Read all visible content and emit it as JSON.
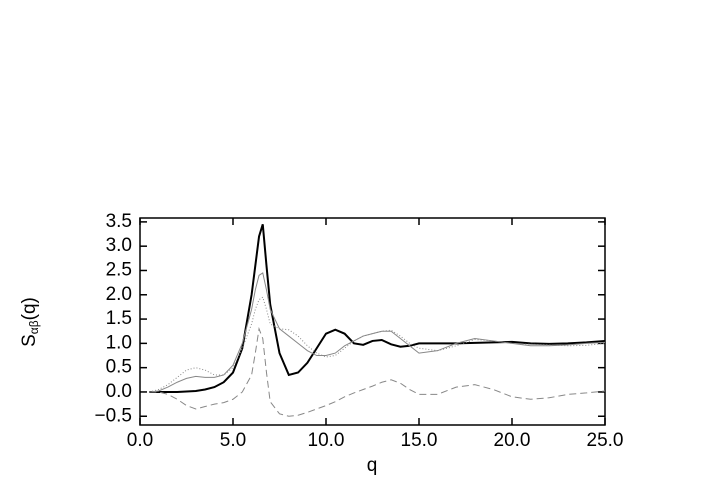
{
  "chart_data": {
    "type": "line",
    "x_label": "q",
    "y_label": "S",
    "y_label_subscript": "αβ",
    "y_label_suffix": "(q)",
    "x": [
      0.5,
      1,
      1.5,
      2,
      2.5,
      3,
      3.5,
      4,
      4.5,
      5,
      5.5,
      6,
      6.2,
      6.4,
      6.6,
      6.8,
      7,
      7.5,
      8,
      8.5,
      9,
      9.5,
      10,
      10.5,
      11,
      11.5,
      12,
      12.5,
      13,
      13.5,
      14,
      14.5,
      15,
      16,
      17,
      18,
      19,
      20,
      21,
      22,
      23,
      24,
      25
    ],
    "series": [
      {
        "color": "#000000",
        "width": 2,
        "dash": "none",
        "values": [
          0,
          0,
          0,
          0,
          0.01,
          0.02,
          0.05,
          0.1,
          0.2,
          0.4,
          0.9,
          2.0,
          2.6,
          3.2,
          3.45,
          2.6,
          1.8,
          0.8,
          0.35,
          0.4,
          0.6,
          0.9,
          1.2,
          1.28,
          1.2,
          1.0,
          0.97,
          1.05,
          1.07,
          0.98,
          0.93,
          0.95,
          1.0,
          1.0,
          1.0,
          1.01,
          1.02,
          1.03,
          1.0,
          0.99,
          1.0,
          1.02,
          1.05
        ]
      },
      {
        "color": "#888888",
        "width": 1,
        "dash": "none",
        "values": [
          0,
          0.02,
          0.1,
          0.2,
          0.28,
          0.32,
          0.3,
          0.3,
          0.35,
          0.55,
          1.0,
          1.7,
          2.1,
          2.4,
          2.45,
          2.1,
          1.7,
          1.3,
          1.15,
          1.0,
          0.85,
          0.75,
          0.75,
          0.8,
          0.95,
          1.05,
          1.15,
          1.2,
          1.25,
          1.25,
          1.1,
          0.95,
          0.8,
          0.85,
          1.0,
          1.1,
          1.05,
          1.0,
          0.95,
          0.95,
          0.97,
          1.0,
          1.02
        ]
      },
      {
        "color": "#888888",
        "width": 1,
        "dash": "1,2",
        "values": [
          0,
          0.05,
          0.15,
          0.3,
          0.45,
          0.5,
          0.45,
          0.35,
          0.35,
          0.5,
          0.9,
          1.4,
          1.7,
          1.9,
          1.95,
          1.7,
          1.4,
          1.3,
          1.28,
          1.15,
          0.95,
          0.8,
          0.72,
          0.75,
          0.9,
          1.05,
          1.15,
          1.2,
          1.25,
          1.27,
          1.15,
          1.0,
          0.9,
          0.85,
          0.95,
          1.08,
          1.05,
          1.0,
          0.98,
          0.97,
          0.95,
          0.96,
          1.0
        ]
      },
      {
        "color": "#888888",
        "width": 1,
        "dash": "7,4",
        "values": [
          0,
          0,
          -0.05,
          -0.15,
          -0.28,
          -0.35,
          -0.3,
          -0.25,
          -0.22,
          -0.15,
          0,
          0.35,
          0.8,
          1.3,
          1.1,
          0.4,
          -0.2,
          -0.45,
          -0.5,
          -0.48,
          -0.42,
          -0.35,
          -0.28,
          -0.2,
          -0.1,
          -0.02,
          0.05,
          0.12,
          0.2,
          0.25,
          0.18,
          0.05,
          -0.05,
          -0.05,
          0.1,
          0.15,
          0.05,
          -0.1,
          -0.15,
          -0.12,
          -0.05,
          -0.02,
          0.02
        ]
      }
    ],
    "xlim": [
      0,
      25
    ],
    "ylim": [
      -0.68,
      3.58
    ],
    "xticks": [
      {
        "value": 0,
        "label": "0.0"
      },
      {
        "value": 5,
        "label": "5.0"
      },
      {
        "value": 10,
        "label": "10.0"
      },
      {
        "value": 15,
        "label": "15.0"
      },
      {
        "value": 20,
        "label": "20.0"
      },
      {
        "value": 25,
        "label": "25.0"
      }
    ],
    "yticks": [
      {
        "value": -0.5,
        "label": "−0.5"
      },
      {
        "value": 0,
        "label": "0.0"
      },
      {
        "value": 0.5,
        "label": "0.5"
      },
      {
        "value": 1,
        "label": "1.0"
      },
      {
        "value": 1.5,
        "label": "1.5"
      },
      {
        "value": 2,
        "label": "2.0"
      },
      {
        "value": 2.5,
        "label": "2.5"
      },
      {
        "value": 3,
        "label": "3.0"
      },
      {
        "value": 3.5,
        "label": "3.5"
      }
    ]
  }
}
